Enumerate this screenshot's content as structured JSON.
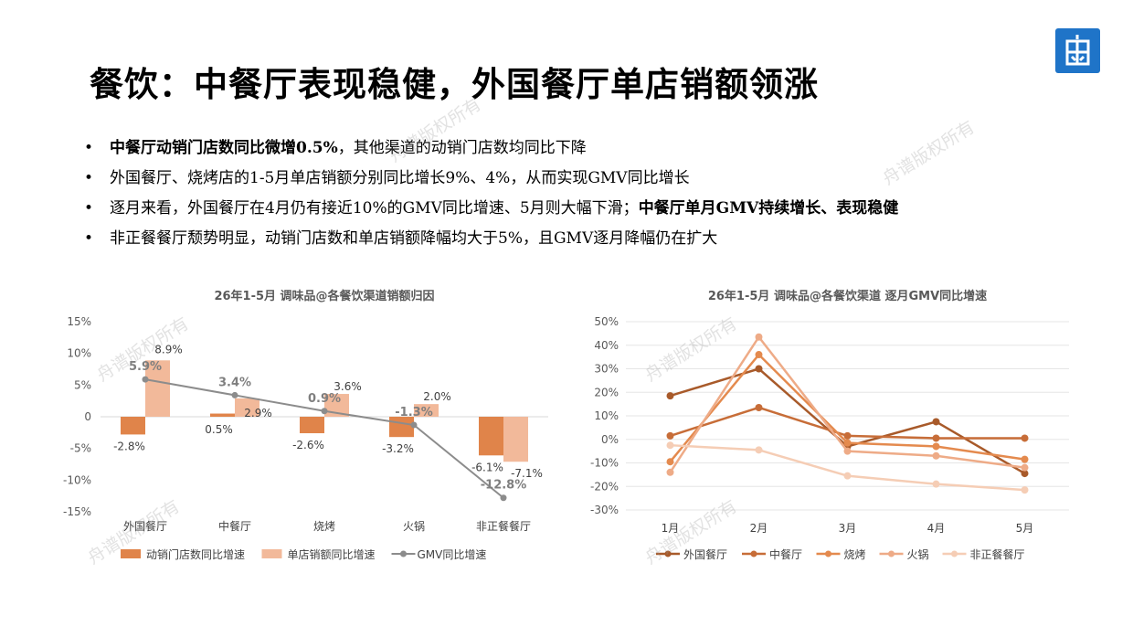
{
  "title": "餐饮：中餐厅表现稳健，外国餐厅单店销额领涨",
  "bullets": [
    {
      "marker": "•",
      "bold": "中餐厅动销门店数同比微增0.5%",
      "text": "，其他渠道的动销门店数均同比下降",
      "bold2": "",
      "text2": ""
    },
    {
      "marker": "•",
      "bold": "",
      "text": "外国餐厅、烧烤店的1-5月单店销额分别同比增长9%、4%，从而实现GMV同比增长",
      "bold2": "",
      "text2": ""
    },
    {
      "marker": "•",
      "bold": "",
      "text": "逐月来看，外国餐厅在4月仍有接近10%的GMV同比增速、5月则大幅下滑；",
      "bold2": "中餐厅单月GMV持续增长、表现稳健",
      "text2": ""
    },
    {
      "marker": "•",
      "bold": "",
      "text": "非正餐餐厅颓势明显，动销门店数和单店销额降幅均大于5%，且GMV逐月降幅仍在扩大",
      "bold2": "",
      "text2": ""
    }
  ],
  "watermark": "舟谱版权所有",
  "logo_icon": "zhoupu-logo-icon",
  "chart_data": [
    {
      "type": "bar",
      "title": "26年1-5月 调味品@各餐饮渠道销额归因",
      "categories": [
        "外国餐厅",
        "中餐厅",
        "烧烤",
        "火锅",
        "非正餐餐厅"
      ],
      "ylim": [
        -15,
        15
      ],
      "yticks": [
        "15%",
        "10%",
        "5%",
        "0",
        "-5%",
        "-10%",
        "-15%"
      ],
      "series": [
        {
          "name": "动销门店数同比增速",
          "kind": "bar",
          "color": "#e0844a",
          "values": [
            -2.8,
            0.5,
            -2.6,
            -3.2,
            -6.1
          ],
          "labels": [
            "-2.8%",
            "0.5%",
            "-2.6%",
            "-3.2%",
            "-6.1%"
          ]
        },
        {
          "name": "单店销额同比增速",
          "kind": "bar",
          "color": "#f2b99a",
          "values": [
            8.9,
            2.9,
            3.6,
            2.0,
            -7.1
          ],
          "labels": [
            "8.9%",
            "2.9%",
            "3.6%",
            "2.0%",
            "-7.1%"
          ]
        },
        {
          "name": "GMV同比增速",
          "kind": "line",
          "color": "#8c8c8c",
          "values": [
            5.9,
            3.4,
            0.9,
            -1.3,
            -12.8
          ],
          "labels": [
            "5.9%",
            "3.4%",
            "0.9%",
            "-1.3%",
            "-12.8%"
          ]
        }
      ]
    },
    {
      "type": "line",
      "title": "26年1-5月 调味品@各餐饮渠道 逐月GMV同比增速",
      "categories": [
        "1月",
        "2月",
        "3月",
        "4月",
        "5月"
      ],
      "ylim": [
        -30,
        50
      ],
      "yticks": [
        "50%",
        "40%",
        "30%",
        "20%",
        "10%",
        "0%",
        "-10%",
        "-20%",
        "-30%"
      ],
      "series": [
        {
          "name": "外国餐厅",
          "color": "#a85a2a",
          "values": [
            18.5,
            30,
            -3,
            7.5,
            -14.5
          ]
        },
        {
          "name": "中餐厅",
          "color": "#c76d38",
          "values": [
            1.5,
            13.5,
            1.5,
            0.5,
            0.5
          ]
        },
        {
          "name": "烧烤",
          "color": "#e48a4e",
          "values": [
            -9.5,
            36,
            -1.5,
            -3,
            -8.5
          ]
        },
        {
          "name": "火锅",
          "color": "#eeab87",
          "values": [
            -14,
            43.5,
            -5,
            -7,
            -12
          ]
        },
        {
          "name": "非正餐餐厅",
          "color": "#f5cdb5",
          "values": [
            -2.5,
            -4.5,
            -15.5,
            -19,
            -21.5
          ]
        }
      ]
    }
  ]
}
